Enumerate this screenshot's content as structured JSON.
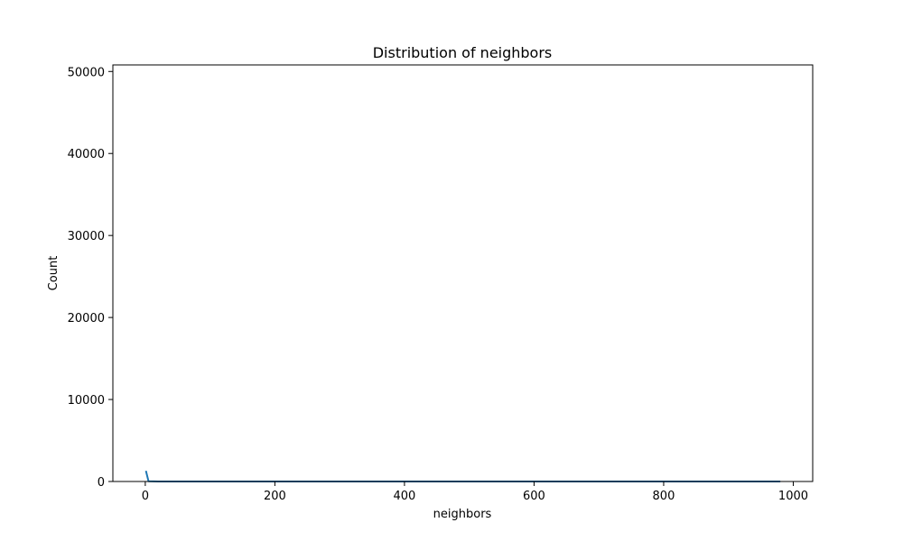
{
  "chart_data": {
    "type": "line",
    "title": "Distribution of neighbors",
    "xlabel": "neighbors",
    "ylabel": "Count",
    "xlim": [
      -50,
      1030
    ],
    "ylim": [
      0,
      50800
    ],
    "x_ticks": [
      0,
      200,
      400,
      600,
      800,
      1000
    ],
    "x_tick_labels": [
      "0",
      "200",
      "400",
      "600",
      "800",
      "1000"
    ],
    "y_ticks": [
      0,
      10000,
      20000,
      30000,
      40000,
      50000
    ],
    "y_tick_labels": [
      "0",
      "10000",
      "20000",
      "30000",
      "40000",
      "50000"
    ],
    "grid": false,
    "series": [
      {
        "color": "#1f77b4",
        "x": [
          1,
          5,
          20,
          100,
          200,
          400,
          600,
          800,
          980
        ],
        "y": [
          1300,
          30,
          5,
          2,
          1,
          1,
          1,
          1,
          1
        ]
      }
    ]
  }
}
